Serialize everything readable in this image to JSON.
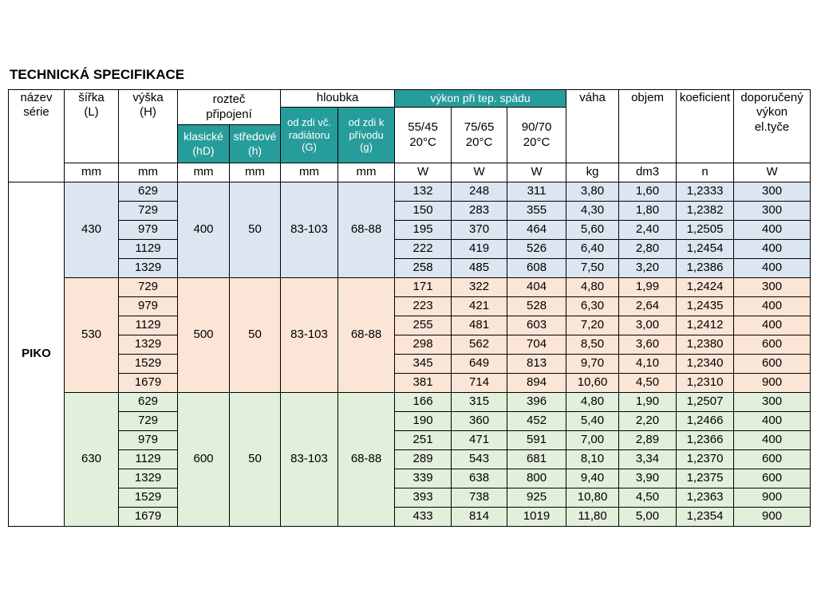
{
  "title": "TECHNICKÁ SPECIFIKACE",
  "colors": {
    "teal": "#279D9B",
    "group_blue": "#DCE6F1",
    "group_peach": "#FBE5D6",
    "group_green": "#E2EFDA"
  },
  "table": {
    "series_name": "PIKO",
    "header": {
      "nazev": "název\nsérie",
      "sirka": "šířka\n(L)",
      "vyska": "výška\n(H)",
      "roztec_pripojeni": "rozteč\npřipojení",
      "klasicke": "klasické\n(hD)",
      "stredove": "středové\n(h)",
      "hloubka": "hloubka",
      "od_zdi_radiator": "od zdi vč.\nradiátoru\n(G)",
      "od_zdi_privod": "od zdi k\npřívodu\n(g)",
      "vykon": "výkon při tep. spádu",
      "spad_5545": "55/45\n20°C",
      "spad_7565": "75/65\n20°C",
      "spad_9070": "90/70\n20°C",
      "vaha": "váha",
      "objem": "objem",
      "koeficient": "koeficient",
      "doporuceny": "doporučený\nvýkon\nel.tyče"
    },
    "units": [
      "mm",
      "mm",
      "mm",
      "mm",
      "mm",
      "mm",
      "W",
      "W",
      "W",
      "kg",
      "dm3",
      "n",
      "W"
    ],
    "groups": [
      {
        "sirka": "430",
        "klasicke": "400",
        "stredove": "50",
        "depth_g": "83-103",
        "depth_g_small": "68-88",
        "color": "group_blue",
        "rows": [
          {
            "vyska": "629",
            "w_5545": "132",
            "w_7565": "248",
            "w_9070": "311",
            "vaha": "3,80",
            "objem": "1,60",
            "koeficient": "1,2333",
            "doporuceny": "300"
          },
          {
            "vyska": "729",
            "w_5545": "150",
            "w_7565": "283",
            "w_9070": "355",
            "vaha": "4,30",
            "objem": "1,80",
            "koeficient": "1,2382",
            "doporuceny": "300"
          },
          {
            "vyska": "979",
            "w_5545": "195",
            "w_7565": "370",
            "w_9070": "464",
            "vaha": "5,60",
            "objem": "2,40",
            "koeficient": "1,2505",
            "doporuceny": "400"
          },
          {
            "vyska": "1129",
            "w_5545": "222",
            "w_7565": "419",
            "w_9070": "526",
            "vaha": "6,40",
            "objem": "2,80",
            "koeficient": "1,2454",
            "doporuceny": "400"
          },
          {
            "vyska": "1329",
            "w_5545": "258",
            "w_7565": "485",
            "w_9070": "608",
            "vaha": "7,50",
            "objem": "3,20",
            "koeficient": "1,2386",
            "doporuceny": "400"
          }
        ]
      },
      {
        "sirka": "530",
        "klasicke": "500",
        "stredove": "50",
        "depth_g": "83-103",
        "depth_g_small": "68-88",
        "color": "group_peach",
        "rows": [
          {
            "vyska": "729",
            "w_5545": "171",
            "w_7565": "322",
            "w_9070": "404",
            "vaha": "4,80",
            "objem": "1,99",
            "koeficient": "1,2424",
            "doporuceny": "300"
          },
          {
            "vyska": "979",
            "w_5545": "223",
            "w_7565": "421",
            "w_9070": "528",
            "vaha": "6,30",
            "objem": "2,64",
            "koeficient": "1,2435",
            "doporuceny": "400"
          },
          {
            "vyska": "1129",
            "w_5545": "255",
            "w_7565": "481",
            "w_9070": "603",
            "vaha": "7,20",
            "objem": "3,00",
            "koeficient": "1,2412",
            "doporuceny": "400"
          },
          {
            "vyska": "1329",
            "w_5545": "298",
            "w_7565": "562",
            "w_9070": "704",
            "vaha": "8,50",
            "objem": "3,60",
            "koeficient": "1,2380",
            "doporuceny": "600"
          },
          {
            "vyska": "1529",
            "w_5545": "345",
            "w_7565": "649",
            "w_9070": "813",
            "vaha": "9,70",
            "objem": "4,10",
            "koeficient": "1,2340",
            "doporuceny": "600"
          },
          {
            "vyska": "1679",
            "w_5545": "381",
            "w_7565": "714",
            "w_9070": "894",
            "vaha": "10,60",
            "objem": "4,50",
            "koeficient": "1,2310",
            "doporuceny": "900"
          }
        ]
      },
      {
        "sirka": "630",
        "klasicke": "600",
        "stredove": "50",
        "depth_g": "83-103",
        "depth_g_small": "68-88",
        "color": "group_green",
        "rows": [
          {
            "vyska": "629",
            "w_5545": "166",
            "w_7565": "315",
            "w_9070": "396",
            "vaha": "4,80",
            "objem": "1,90",
            "koeficient": "1,2507",
            "doporuceny": "300"
          },
          {
            "vyska": "729",
            "w_5545": "190",
            "w_7565": "360",
            "w_9070": "452",
            "vaha": "5,40",
            "objem": "2,20",
            "koeficient": "1,2466",
            "doporuceny": "400"
          },
          {
            "vyska": "979",
            "w_5545": "251",
            "w_7565": "471",
            "w_9070": "591",
            "vaha": "7,00",
            "objem": "2,89",
            "koeficient": "1,2366",
            "doporuceny": "400"
          },
          {
            "vyska": "1129",
            "w_5545": "289",
            "w_7565": "543",
            "w_9070": "681",
            "vaha": "8,10",
            "objem": "3,34",
            "koeficient": "1,2370",
            "doporuceny": "600"
          },
          {
            "vyska": "1329",
            "w_5545": "339",
            "w_7565": "638",
            "w_9070": "800",
            "vaha": "9,40",
            "objem": "3,90",
            "koeficient": "1,2375",
            "doporuceny": "600"
          },
          {
            "vyska": "1529",
            "w_5545": "393",
            "w_7565": "738",
            "w_9070": "925",
            "vaha": "10,80",
            "objem": "4,50",
            "koeficient": "1,2363",
            "doporuceny": "900"
          },
          {
            "vyska": "1679",
            "w_5545": "433",
            "w_7565": "814",
            "w_9070": "1019",
            "vaha": "11,80",
            "objem": "5,00",
            "koeficient": "1,2354",
            "doporuceny": "900"
          }
        ]
      }
    ]
  }
}
